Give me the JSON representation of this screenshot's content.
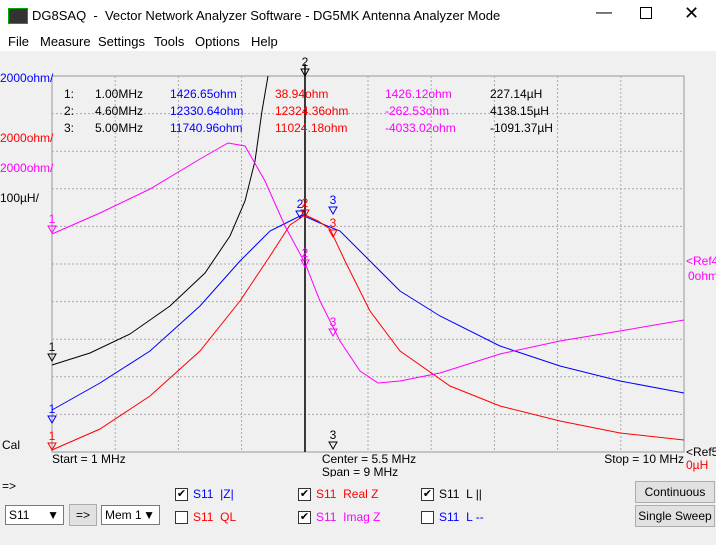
{
  "window": {
    "title": "DG8SAQ  -  Vector Network Analyzer Software - DG5MK Antenna Analyzer Mode"
  },
  "menu": [
    "File",
    "Measure",
    "Settings",
    "Tools",
    "Options",
    "Help"
  ],
  "markers_table": [
    [
      "1:",
      "1.00MHz",
      "1426.65ohm",
      "38.94ohm",
      "1426.12ohm",
      "227.14µH"
    ],
    [
      "2:",
      "4.60MHz",
      "12330.64ohm",
      "12324.36ohm",
      "-262.53ohm",
      "4138.15µH"
    ],
    [
      "3:",
      "5.00MHz",
      "11740.96ohm",
      "11024.18ohm",
      "-4033.02ohm",
      "-1091.37µH"
    ]
  ],
  "scale_labels": {
    "z": "2000ohm/",
    "real": "2000ohm/",
    "imag": "2000ohm/",
    "l": "100µH/",
    "cal": "Cal",
    "ref4": "<Ref4",
    "ref4_value": "0ohm",
    "ref5": "<Ref5",
    "ref5_value": "0µH"
  },
  "trace_markers": [
    "2",
    "3",
    "1",
    "1",
    "2",
    "3",
    "1",
    "2",
    "3",
    "1",
    "2",
    "3"
  ],
  "footer": {
    "start": "Start = 1 MHz",
    "center": "Center = 5.5 MHz",
    "span": "Span = 9 MHz",
    "stop": "Stop = 10 MHz"
  },
  "arrow_label": "=>",
  "checkboxes": [
    {
      "label": "S11  |Z|",
      "checked": true
    },
    {
      "label": "S11  QL",
      "checked": false
    },
    {
      "label": "S11  Real Z",
      "checked": true
    },
    {
      "label": "S11  Imag Z",
      "checked": true
    },
    {
      "label": "S11  L ||",
      "checked": true
    },
    {
      "label": "S11  L --",
      "checked": false
    }
  ],
  "controls": {
    "param_select": "S11",
    "go_button": "=>",
    "mem_select": "Mem 1",
    "continuous_button": "Continuous",
    "single_sweep_button": "Single Sweep"
  }
}
